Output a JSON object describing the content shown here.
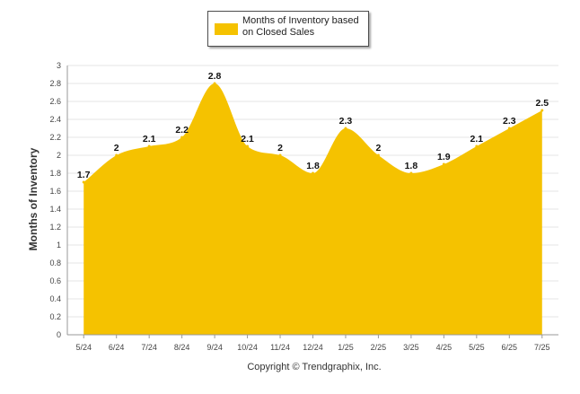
{
  "colors": {
    "series": "#F5C200",
    "grid": "#e6e6e6",
    "axis": "#999999"
  },
  "legend": {
    "label": "Months of Inventory based on Closed Sales"
  },
  "caption": "Copyright © Trendgraphix, Inc.",
  "chart_data": {
    "type": "area",
    "title": "",
    "xlabel": "",
    "ylabel": "Months of Inventory",
    "ylim": [
      0,
      3
    ],
    "yticks": [
      0,
      0.2,
      0.4,
      0.6,
      0.8,
      1,
      1.2,
      1.4,
      1.6,
      1.8,
      2,
      2.2,
      2.4,
      2.6,
      2.8,
      3
    ],
    "ytick_labels": [
      "0",
      "0.2",
      "0.4",
      "0.6",
      "0.8",
      "1",
      "1.2",
      "1.4",
      "1.6",
      "1.8",
      "2",
      "2.2",
      "2.4",
      "2.6",
      "2.8",
      "3"
    ],
    "categories": [
      "5/24",
      "6/24",
      "7/24",
      "8/24",
      "9/24",
      "10/24",
      "11/24",
      "12/24",
      "1/25",
      "2/25",
      "3/25",
      "4/25",
      "5/25",
      "6/25",
      "7/25"
    ],
    "series": [
      {
        "name": "Months of Inventory based on Closed Sales",
        "values": [
          1.7,
          2,
          2.1,
          2.2,
          2.8,
          2.1,
          2,
          1.8,
          2.3,
          2,
          1.8,
          1.9,
          2.1,
          2.3,
          2.5
        ],
        "data_labels": [
          "1.7",
          "2",
          "2.1",
          "2.2",
          "2.8",
          "2.1",
          "2",
          "1.8",
          "2.3",
          "2",
          "1.8",
          "1.9",
          "2.1",
          "2.3",
          "2.5"
        ]
      }
    ],
    "grid": true,
    "legend_position": "top-center"
  }
}
